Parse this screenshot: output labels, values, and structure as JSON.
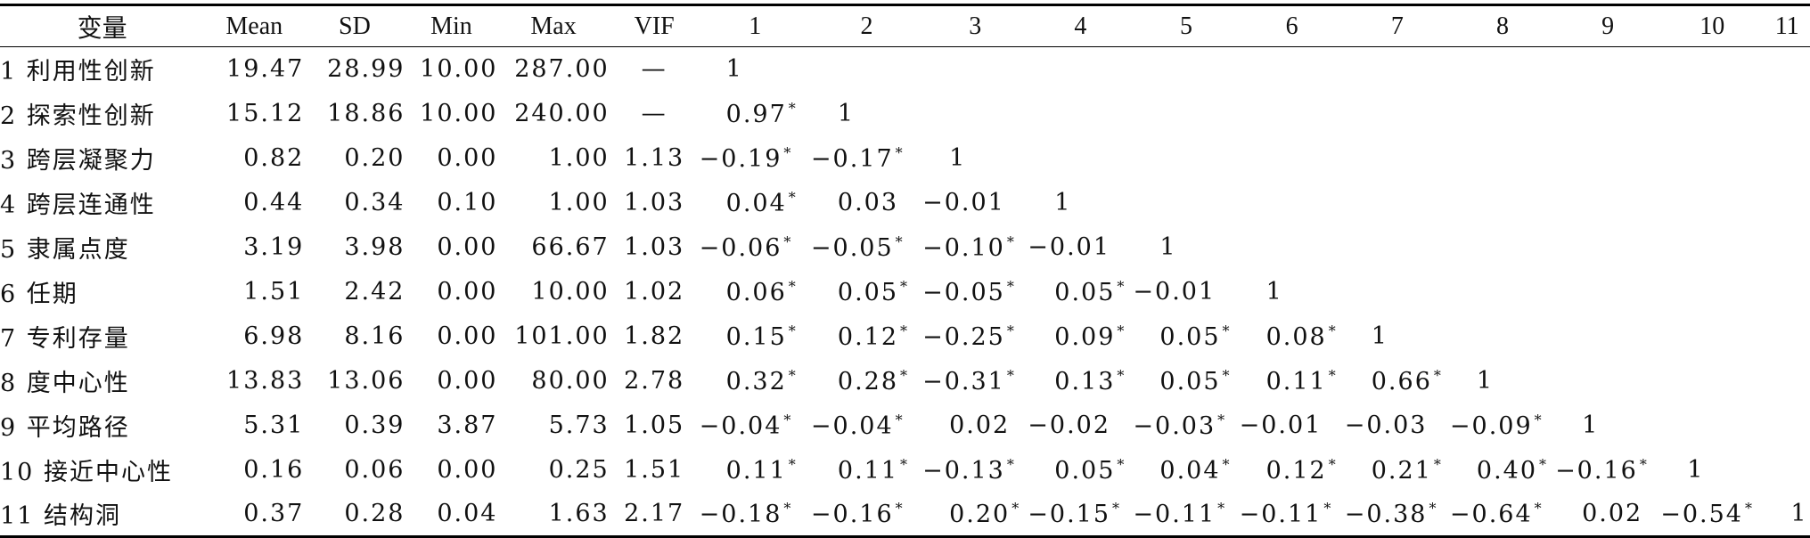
{
  "headers": [
    "变量",
    "Mean",
    "SD",
    "Min",
    "Max",
    "VIF",
    "1",
    "2",
    "3",
    "4",
    "5",
    "6",
    "7",
    "8",
    "9",
    "10",
    "11"
  ],
  "rows": [
    {
      "var": "1 利用性创新",
      "mean": "19.47",
      "sd": "28.99",
      "min": "10.00",
      "max": "287.00",
      "vif": "—",
      "cells": [
        {
          "v": "1",
          "s": ""
        }
      ]
    },
    {
      "var": "2 探索性创新",
      "mean": "15.12",
      "sd": "18.86",
      "min": "10.00",
      "max": "240.00",
      "vif": "—",
      "cells": [
        {
          "v": "0.97",
          "s": "*"
        },
        {
          "v": "1",
          "s": ""
        }
      ]
    },
    {
      "var": "3 跨层凝聚力",
      "mean": "0.82",
      "sd": "0.20",
      "min": "0.00",
      "max": "1.00",
      "vif": "1.13",
      "cells": [
        {
          "v": "−0.19",
          "s": "*"
        },
        {
          "v": "−0.17",
          "s": "*"
        },
        {
          "v": "1",
          "s": ""
        }
      ]
    },
    {
      "var": "4 跨层连通性",
      "mean": "0.44",
      "sd": "0.34",
      "min": "0.10",
      "max": "1.00",
      "vif": "1.03",
      "cells": [
        {
          "v": "0.04",
          "s": "*"
        },
        {
          "v": "0.03",
          "s": ""
        },
        {
          "v": "−0.01",
          "s": ""
        },
        {
          "v": "1",
          "s": ""
        }
      ]
    },
    {
      "var": "5 隶属点度",
      "mean": "3.19",
      "sd": "3.98",
      "min": "0.00",
      "max": "66.67",
      "vif": "1.03",
      "cells": [
        {
          "v": "−0.06",
          "s": "*"
        },
        {
          "v": "−0.05",
          "s": "*"
        },
        {
          "v": "−0.10",
          "s": "*"
        },
        {
          "v": "−0.01",
          "s": ""
        },
        {
          "v": "1",
          "s": ""
        }
      ]
    },
    {
      "var": "6 任期",
      "mean": "1.51",
      "sd": "2.42",
      "min": "0.00",
      "max": "10.00",
      "vif": "1.02",
      "cells": [
        {
          "v": "0.06",
          "s": "*"
        },
        {
          "v": "0.05",
          "s": "*"
        },
        {
          "v": "−0.05",
          "s": "*"
        },
        {
          "v": "0.05",
          "s": "*"
        },
        {
          "v": "−0.01",
          "s": ""
        },
        {
          "v": "1",
          "s": ""
        }
      ]
    },
    {
      "var": "7 专利存量",
      "mean": "6.98",
      "sd": "8.16",
      "min": "0.00",
      "max": "101.00",
      "vif": "1.82",
      "cells": [
        {
          "v": "0.15",
          "s": "*"
        },
        {
          "v": "0.12",
          "s": "*"
        },
        {
          "v": "−0.25",
          "s": "*"
        },
        {
          "v": "0.09",
          "s": "*"
        },
        {
          "v": "0.05",
          "s": "*"
        },
        {
          "v": "0.08",
          "s": "*"
        },
        {
          "v": "1",
          "s": ""
        }
      ]
    },
    {
      "var": "8 度中心性",
      "mean": "13.83",
      "sd": "13.06",
      "min": "0.00",
      "max": "80.00",
      "vif": "2.78",
      "cells": [
        {
          "v": "0.32",
          "s": "*"
        },
        {
          "v": "0.28",
          "s": "*"
        },
        {
          "v": "−0.31",
          "s": "*"
        },
        {
          "v": "0.13",
          "s": "*"
        },
        {
          "v": "0.05",
          "s": "*"
        },
        {
          "v": "0.11",
          "s": "*"
        },
        {
          "v": "0.66",
          "s": "*"
        },
        {
          "v": "1",
          "s": ""
        }
      ]
    },
    {
      "var": "9 平均路径",
      "mean": "5.31",
      "sd": "0.39",
      "min": "3.87",
      "max": "5.73",
      "vif": "1.05",
      "cells": [
        {
          "v": "−0.04",
          "s": "*"
        },
        {
          "v": "−0.04",
          "s": "*"
        },
        {
          "v": "0.02",
          "s": ""
        },
        {
          "v": "−0.02",
          "s": ""
        },
        {
          "v": "−0.03",
          "s": "*"
        },
        {
          "v": "−0.01",
          "s": ""
        },
        {
          "v": "−0.03",
          "s": ""
        },
        {
          "v": "−0.09",
          "s": "*"
        },
        {
          "v": "1",
          "s": ""
        }
      ]
    },
    {
      "var": "10 接近中心性",
      "mean": "0.16",
      "sd": "0.06",
      "min": "0.00",
      "max": "0.25",
      "vif": "1.51",
      "cells": [
        {
          "v": "0.11",
          "s": "*"
        },
        {
          "v": "0.11",
          "s": "*"
        },
        {
          "v": "−0.13",
          "s": "*"
        },
        {
          "v": "0.05",
          "s": "*"
        },
        {
          "v": "0.04",
          "s": "*"
        },
        {
          "v": "0.12",
          "s": "*"
        },
        {
          "v": "0.21",
          "s": "*"
        },
        {
          "v": "0.40",
          "s": "*"
        },
        {
          "v": "−0.16",
          "s": "*"
        },
        {
          "v": "1",
          "s": ""
        }
      ]
    },
    {
      "var": "11 结构洞",
      "mean": "0.37",
      "sd": "0.28",
      "min": "0.04",
      "max": "1.63",
      "vif": "2.17",
      "cells": [
        {
          "v": "−0.18",
          "s": "*"
        },
        {
          "v": "−0.16",
          "s": "*"
        },
        {
          "v": "0.20",
          "s": "*"
        },
        {
          "v": "−0.15",
          "s": "*"
        },
        {
          "v": "−0.11",
          "s": "*"
        },
        {
          "v": "−0.11",
          "s": "*"
        },
        {
          "v": "−0.38",
          "s": "*"
        },
        {
          "v": "−0.64",
          "s": "*"
        },
        {
          "v": "0.02",
          "s": ""
        },
        {
          "v": "−0.54",
          "s": "*"
        },
        {
          "v": "1",
          "s": ""
        }
      ]
    }
  ]
}
